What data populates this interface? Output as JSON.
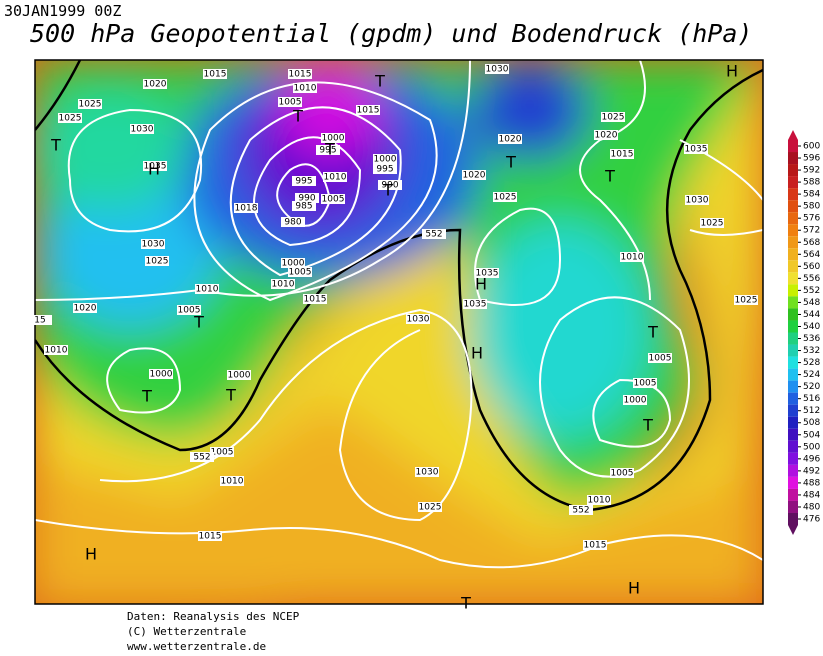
{
  "date": "30JAN1999 00Z",
  "title": "500 hPa Geopotential (gpdm) und Bodendruck (hPa)",
  "footer": [
    "Daten: Reanalysis des NCEP",
    "(C) Wetterzentrale",
    "www.wetterzentrale.de"
  ],
  "colorbar": [
    {
      "value": 600,
      "color": "#c8103c"
    },
    {
      "value": 596,
      "color": "#a81020"
    },
    {
      "value": 592,
      "color": "#b81818"
    },
    {
      "value": 588,
      "color": "#c82020"
    },
    {
      "value": 584,
      "color": "#d83818"
    },
    {
      "value": 580,
      "color": "#e05010"
    },
    {
      "value": 576,
      "color": "#e86810"
    },
    {
      "value": 572,
      "color": "#f08010"
    },
    {
      "value": 568,
      "color": "#f09818"
    },
    {
      "value": 564,
      "color": "#f0b020"
    },
    {
      "value": 560,
      "color": "#f0c828"
    },
    {
      "value": 556,
      "color": "#f0e030"
    },
    {
      "value": 552,
      "color": "#c8f000"
    },
    {
      "value": 548,
      "color": "#70e020"
    },
    {
      "value": 544,
      "color": "#30c020"
    },
    {
      "value": 540,
      "color": "#20d040"
    },
    {
      "value": 536,
      "color": "#20d080"
    },
    {
      "value": 532,
      "color": "#20d0b0"
    },
    {
      "value": 528,
      "color": "#20e0e0"
    },
    {
      "value": 524,
      "color": "#20c0f0"
    },
    {
      "value": 520,
      "color": "#2090f0"
    },
    {
      "value": 516,
      "color": "#2060e0"
    },
    {
      "value": 512,
      "color": "#2040d0"
    },
    {
      "value": 508,
      "color": "#2020c0"
    },
    {
      "value": 504,
      "color": "#4010c0"
    },
    {
      "value": 500,
      "color": "#6010d0"
    },
    {
      "value": 496,
      "color": "#8010e0"
    },
    {
      "value": 492,
      "color": "#b010e0"
    },
    {
      "value": 488,
      "color": "#e010e0"
    },
    {
      "value": 484,
      "color": "#c010a0"
    },
    {
      "value": 480,
      "color": "#901080"
    },
    {
      "value": 476,
      "color": "#601060"
    }
  ],
  "isobar_labels": [
    "1015",
    "1015",
    "1010",
    "1005",
    "1030",
    "1020",
    "1025",
    "1025",
    "1030",
    "1015",
    "1000",
    "995",
    "1000",
    "995",
    "990",
    "1010",
    "1005",
    "995",
    "990",
    "985",
    "980",
    "1018",
    "1035",
    "1030",
    "1025",
    "1020",
    "1020",
    "1025",
    "1015",
    "1020",
    "1025",
    "1035",
    "1030",
    "1025",
    "1010",
    "1025",
    "1000",
    "1005",
    "1010",
    "1015",
    "1010",
    "1005",
    "1020",
    "1010",
    "1000",
    "1000",
    "1035",
    "1035",
    "1030",
    "1005",
    "1005",
    "1000",
    "1005",
    "1010",
    "1030",
    "1025",
    "1005",
    "1010",
    "1015",
    "1015",
    "15",
    "552",
    "552",
    "552"
  ],
  "pressure_centers": [
    "T",
    "T",
    "H",
    "T",
    "H",
    "T",
    "T",
    "T",
    "T",
    "H",
    "T",
    "H",
    "T",
    "T",
    "T",
    "T",
    "H",
    "H",
    "T"
  ]
}
